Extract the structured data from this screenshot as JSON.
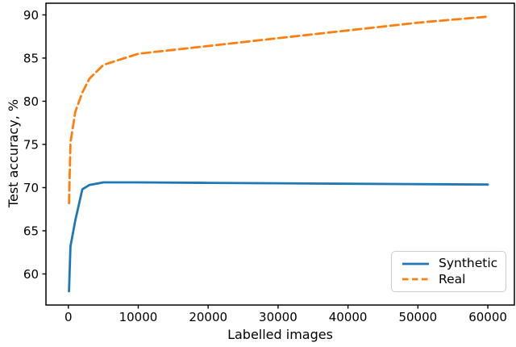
{
  "figure": {
    "background": "#ffffff",
    "frame_color": "#000000",
    "text_color": "#000000",
    "legend_border_color": "#cccccc"
  },
  "chart_data": {
    "type": "line",
    "title": "",
    "xlabel": "Labelled images",
    "ylabel": "Test accuracy, %",
    "x": [
      100,
      300,
      1000,
      2000,
      3000,
      5000,
      10000,
      20000,
      30000,
      40000,
      50000,
      60000
    ],
    "series": [
      {
        "name": "Synthetic",
        "color": "#1f77b4",
        "line_style": "solid",
        "values": [
          58.0,
          63.2,
          66.2,
          69.8,
          70.3,
          70.6,
          70.6,
          70.55,
          70.5,
          70.45,
          70.4,
          70.35
        ]
      },
      {
        "name": "Real",
        "color": "#ff7f0e",
        "line_style": "dashed",
        "values": [
          68.2,
          75.2,
          78.8,
          81.0,
          82.6,
          84.2,
          85.5,
          86.4,
          87.3,
          88.2,
          89.1,
          89.8
        ]
      }
    ],
    "xticks": [
      0,
      10000,
      20000,
      30000,
      40000,
      50000,
      60000
    ],
    "yticks": [
      60,
      65,
      70,
      75,
      80,
      85,
      90
    ],
    "xlim": [
      -3200,
      63800
    ],
    "ylim": [
      56.4,
      91.35
    ],
    "grid": false,
    "legend_position": "lower right"
  }
}
